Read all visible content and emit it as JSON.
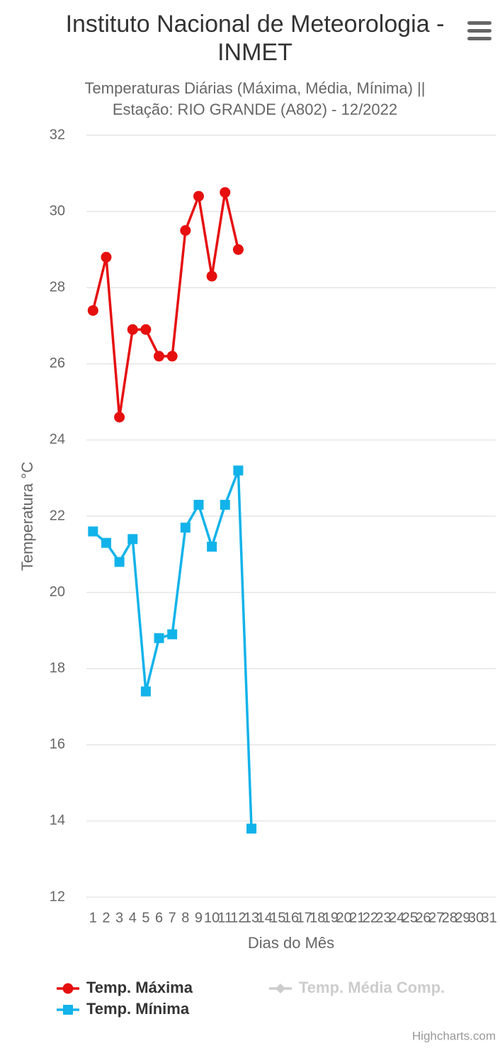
{
  "chart_data": {
    "type": "line",
    "title": "Instituto Nacional de Meteorologia - INMET",
    "subtitle": "Temperaturas Diárias (Máxima, Média, Mínima) || Estação: RIO GRANDE (A802) - 12/2022",
    "x_label": "Dias do Mês",
    "y_label": "Temperatura °C",
    "credits": "Highcharts.com",
    "categories": [
      "1",
      "2",
      "3",
      "4",
      "5",
      "6",
      "7",
      "8",
      "9",
      "10",
      "11",
      "12",
      "13",
      "14",
      "15",
      "16",
      "17",
      "18",
      "19",
      "20",
      "21",
      "22",
      "23",
      "24",
      "25",
      "26",
      "27",
      "28",
      "29",
      "30",
      "31"
    ],
    "series": [
      {
        "name": "Temp. Máxima",
        "color": "#e60f0f",
        "marker": "circle",
        "visible": true,
        "values": [
          27.4,
          28.8,
          24.6,
          26.9,
          26.9,
          26.2,
          26.2,
          29.5,
          30.4,
          28.3,
          30.5,
          29.0,
          null,
          null,
          null,
          null,
          null,
          null,
          null,
          null,
          null,
          null,
          null,
          null,
          null,
          null,
          null,
          null,
          null,
          null,
          null
        ]
      },
      {
        "name": "Temp. Média Comp.",
        "color": "#cccccc",
        "marker": "diamond",
        "visible": false,
        "values": [
          null,
          null,
          null,
          null,
          null,
          null,
          null,
          null,
          null,
          null,
          null,
          null,
          null,
          null,
          null,
          null,
          null,
          null,
          null,
          null,
          null,
          null,
          null,
          null,
          null,
          null,
          null,
          null,
          null,
          null,
          null
        ]
      },
      {
        "name": "Temp. Mínima",
        "color": "#12b3ea",
        "marker": "square",
        "visible": true,
        "values": [
          21.6,
          21.3,
          20.8,
          21.4,
          17.4,
          18.8,
          18.9,
          21.7,
          22.3,
          21.2,
          22.3,
          23.2,
          13.8,
          null,
          null,
          null,
          null,
          null,
          null,
          null,
          null,
          null,
          null,
          null,
          null,
          null,
          null,
          null,
          null,
          null,
          null
        ]
      }
    ],
    "ylim": [
      12,
      32
    ],
    "yticks": [
      12,
      14,
      16,
      18,
      20,
      22,
      24,
      26,
      28,
      30,
      32
    ],
    "grid": true
  }
}
